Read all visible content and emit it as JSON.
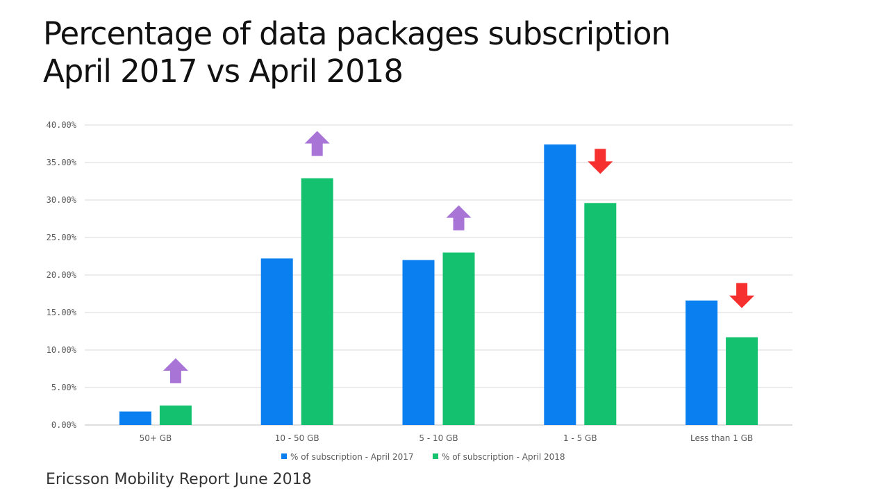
{
  "title": {
    "line1": "Percentage of data packages subscription",
    "line2": "April 2017 vs April 2018"
  },
  "footer": "Ericsson Mobility Report June 2018",
  "chart_data": {
    "type": "bar",
    "categories": [
      "50+ GB",
      "10 - 50 GB",
      "5 - 10 GB",
      "1 - 5 GB",
      "Less than 1 GB"
    ],
    "series": [
      {
        "name": "% of subscription - April 2017",
        "color": "#0a7ff0",
        "values": [
          1.8,
          22.2,
          22.0,
          37.4,
          16.6
        ]
      },
      {
        "name": "% of subscription - April 2018",
        "color": "#14c16e",
        "values": [
          2.6,
          32.9,
          23.0,
          29.6,
          11.7
        ]
      }
    ],
    "ylim": [
      0,
      40
    ],
    "yticks": [
      "0.00%",
      "5.00%",
      "10.00%",
      "15.00%",
      "20.00%",
      "25.00%",
      "30.00%",
      "35.00%",
      "40.00%"
    ],
    "grid": true,
    "legend_position": "bottom",
    "trend_arrows": [
      {
        "category": "50+ GB",
        "direction": "up",
        "color": "#a874d6"
      },
      {
        "category": "10 - 50 GB",
        "direction": "up",
        "color": "#a874d6"
      },
      {
        "category": "5 - 10 GB",
        "direction": "up",
        "color": "#a874d6"
      },
      {
        "category": "1 - 5 GB",
        "direction": "down",
        "color": "#f5302f"
      },
      {
        "category": "Less than 1 GB",
        "direction": "down",
        "color": "#f5302f"
      }
    ]
  }
}
